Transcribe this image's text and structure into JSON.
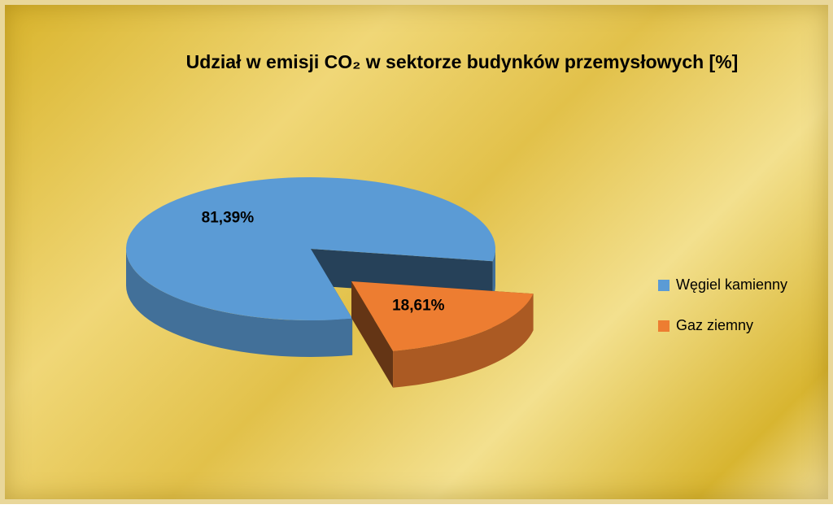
{
  "chart_data": {
    "type": "pie",
    "title": "Udział w emisji CO₂ w sektorze budynków przemysłowych [%]",
    "categories": [
      "Węgiel kamienny",
      "Gaz ziemny"
    ],
    "values": [
      81.39,
      18.61
    ],
    "value_labels": [
      "81,39%",
      "18,61%"
    ],
    "colors": [
      "#5b9bd5",
      "#ed7d31"
    ],
    "legend": "right"
  }
}
